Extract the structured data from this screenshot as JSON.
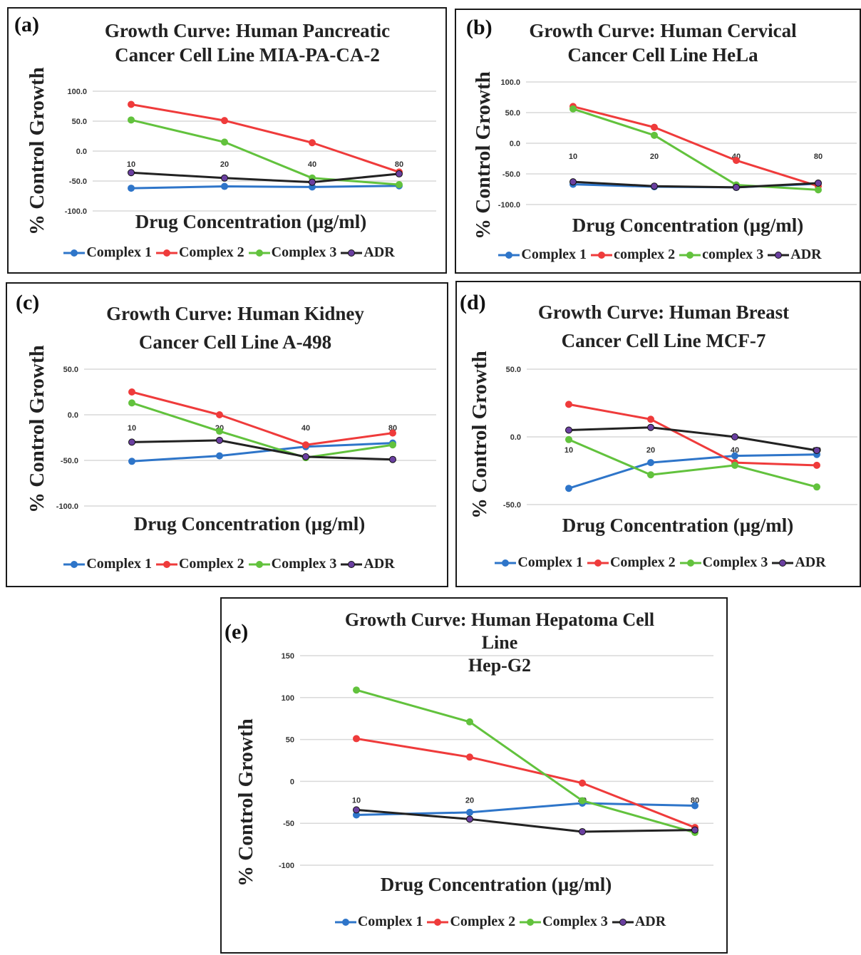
{
  "colors": {
    "complex1": "#2e75c9",
    "complex2": "#ef3b3b",
    "complex3": "#62c23d",
    "adr": "#222222",
    "adr_marker": "#6a3fa0",
    "grid": "#d9d9d9"
  },
  "chart_data": [
    {
      "id": "a",
      "type": "line",
      "panel_label": "(a)",
      "title_lines": [
        "Growth Curve: Human Pancreatic",
        "Cancer Cell Line MIA-PA-CA-2"
      ],
      "xlabel": "Drug Concentration (µg/ml)",
      "ylabel": "% Control Growth",
      "categories": [
        "10",
        "20",
        "40",
        "80"
      ],
      "ylim": [
        -100,
        100
      ],
      "yticks": [
        100,
        50,
        0,
        -50,
        -100
      ],
      "ytick_labels": [
        "100.0",
        "50.0",
        "0.0",
        "-50.0",
        "-100.0"
      ],
      "grid": true,
      "legend_position": "bottom",
      "series": [
        {
          "name": "Complex 1",
          "color_key": "complex1",
          "values": [
            -62,
            -59,
            -60,
            -58
          ]
        },
        {
          "name": "Complex 2",
          "color_key": "complex2",
          "values": [
            78,
            51,
            14,
            -35
          ]
        },
        {
          "name": "Complex 3",
          "color_key": "complex3",
          "values": [
            52,
            15,
            -45,
            -56
          ]
        },
        {
          "name": "ADR",
          "color_key": "adr",
          "values": [
            -36,
            -45,
            -52,
            -38
          ]
        }
      ]
    },
    {
      "id": "b",
      "type": "line",
      "panel_label": "(b)",
      "title_lines": [
        "Growth Curve: Human Cervical",
        "Cancer Cell Line HeLa"
      ],
      "xlabel": "Drug Concentration (µg/ml)",
      "ylabel": "% Control Growth",
      "categories": [
        "10",
        "20",
        "40",
        "80"
      ],
      "ylim": [
        -100,
        100
      ],
      "yticks": [
        100,
        50,
        0,
        -50,
        -100
      ],
      "ytick_labels": [
        "100.0",
        "50.0",
        "0.0",
        "-50.0",
        "-100.0"
      ],
      "grid": true,
      "legend_position": "bottom",
      "series": [
        {
          "name": "Complex 1",
          "color_key": "complex1",
          "values": [
            -67,
            -71,
            -72,
            -66
          ]
        },
        {
          "name": "complex 2",
          "color_key": "complex2",
          "values": [
            60,
            26,
            -28,
            -70
          ]
        },
        {
          "name": "complex 3",
          "color_key": "complex3",
          "values": [
            56,
            13,
            -68,
            -76
          ]
        },
        {
          "name": "ADR",
          "color_key": "adr",
          "values": [
            -63,
            -70,
            -72,
            -65
          ]
        }
      ]
    },
    {
      "id": "c",
      "type": "line",
      "panel_label": "(c)",
      "title_lines": [
        "Growth Curve: Human Kidney",
        "Cancer Cell Line A-498"
      ],
      "xlabel": "Drug Concentration (µg/ml)",
      "ylabel": "% Control Growth",
      "categories": [
        "10",
        "20",
        "40",
        "80"
      ],
      "ylim": [
        -100,
        50
      ],
      "yticks": [
        50,
        0,
        -50,
        -100
      ],
      "ytick_labels": [
        "50.0",
        "0.0",
        "-50.0",
        "-100.0"
      ],
      "grid": true,
      "legend_position": "bottom",
      "series": [
        {
          "name": "Complex 1",
          "color_key": "complex1",
          "values": [
            -51,
            -45,
            -35,
            -31
          ]
        },
        {
          "name": "Complex 2",
          "color_key": "complex2",
          "values": [
            25,
            0,
            -33,
            -20
          ]
        },
        {
          "name": "Complex 3",
          "color_key": "complex3",
          "values": [
            13,
            -18,
            -47,
            -33
          ]
        },
        {
          "name": "ADR",
          "color_key": "adr",
          "values": [
            -30,
            -28,
            -46,
            -49
          ]
        }
      ]
    },
    {
      "id": "d",
      "type": "line",
      "panel_label": "(d)",
      "title_lines": [
        "Growth Curve: Human Breast",
        "Cancer Cell Line MCF-7"
      ],
      "xlabel": "Drug Concentration (µg/ml)",
      "ylabel": "% Control Growth",
      "categories": [
        "10",
        "20",
        "40",
        "80"
      ],
      "ylim": [
        -50,
        50
      ],
      "yticks": [
        50,
        0,
        -50
      ],
      "ytick_labels": [
        "50.0",
        "0.0",
        "-50.0"
      ],
      "grid": true,
      "legend_position": "bottom",
      "series": [
        {
          "name": "Complex 1",
          "color_key": "complex1",
          "values": [
            -38,
            -19,
            -14,
            -13
          ]
        },
        {
          "name": "Complex 2",
          "color_key": "complex2",
          "values": [
            24,
            13,
            -19,
            -21
          ]
        },
        {
          "name": "Complex 3",
          "color_key": "complex3",
          "values": [
            -2,
            -28,
            -21,
            -37
          ]
        },
        {
          "name": "ADR",
          "color_key": "adr",
          "values": [
            5,
            7,
            0,
            -10
          ]
        }
      ]
    },
    {
      "id": "e",
      "type": "line",
      "panel_label": "(e)",
      "title_lines": [
        "Growth Curve: Human Hepatoma Cell",
        "Line",
        "Hep-G2"
      ],
      "xlabel": "Drug Concentration (µg/ml)",
      "ylabel": "% Control Growth",
      "categories": [
        "10",
        "20",
        "40",
        "80"
      ],
      "ylim": [
        -100,
        150
      ],
      "yticks": [
        150,
        100,
        50,
        0,
        -50,
        -100
      ],
      "ytick_labels": [
        "150",
        "100",
        "50",
        "0",
        "-50",
        "-100"
      ],
      "grid": true,
      "legend_position": "bottom",
      "series": [
        {
          "name": "Complex 1",
          "color_key": "complex1",
          "values": [
            -40,
            -37,
            -26,
            -29
          ]
        },
        {
          "name": "Complex 2",
          "color_key": "complex2",
          "values": [
            51,
            29,
            -2,
            -55
          ]
        },
        {
          "name": "Complex 3",
          "color_key": "complex3",
          "values": [
            109,
            71,
            -23,
            -61
          ]
        },
        {
          "name": "ADR",
          "color_key": "adr",
          "values": [
            -34,
            -45,
            -60,
            -58
          ]
        }
      ]
    }
  ]
}
